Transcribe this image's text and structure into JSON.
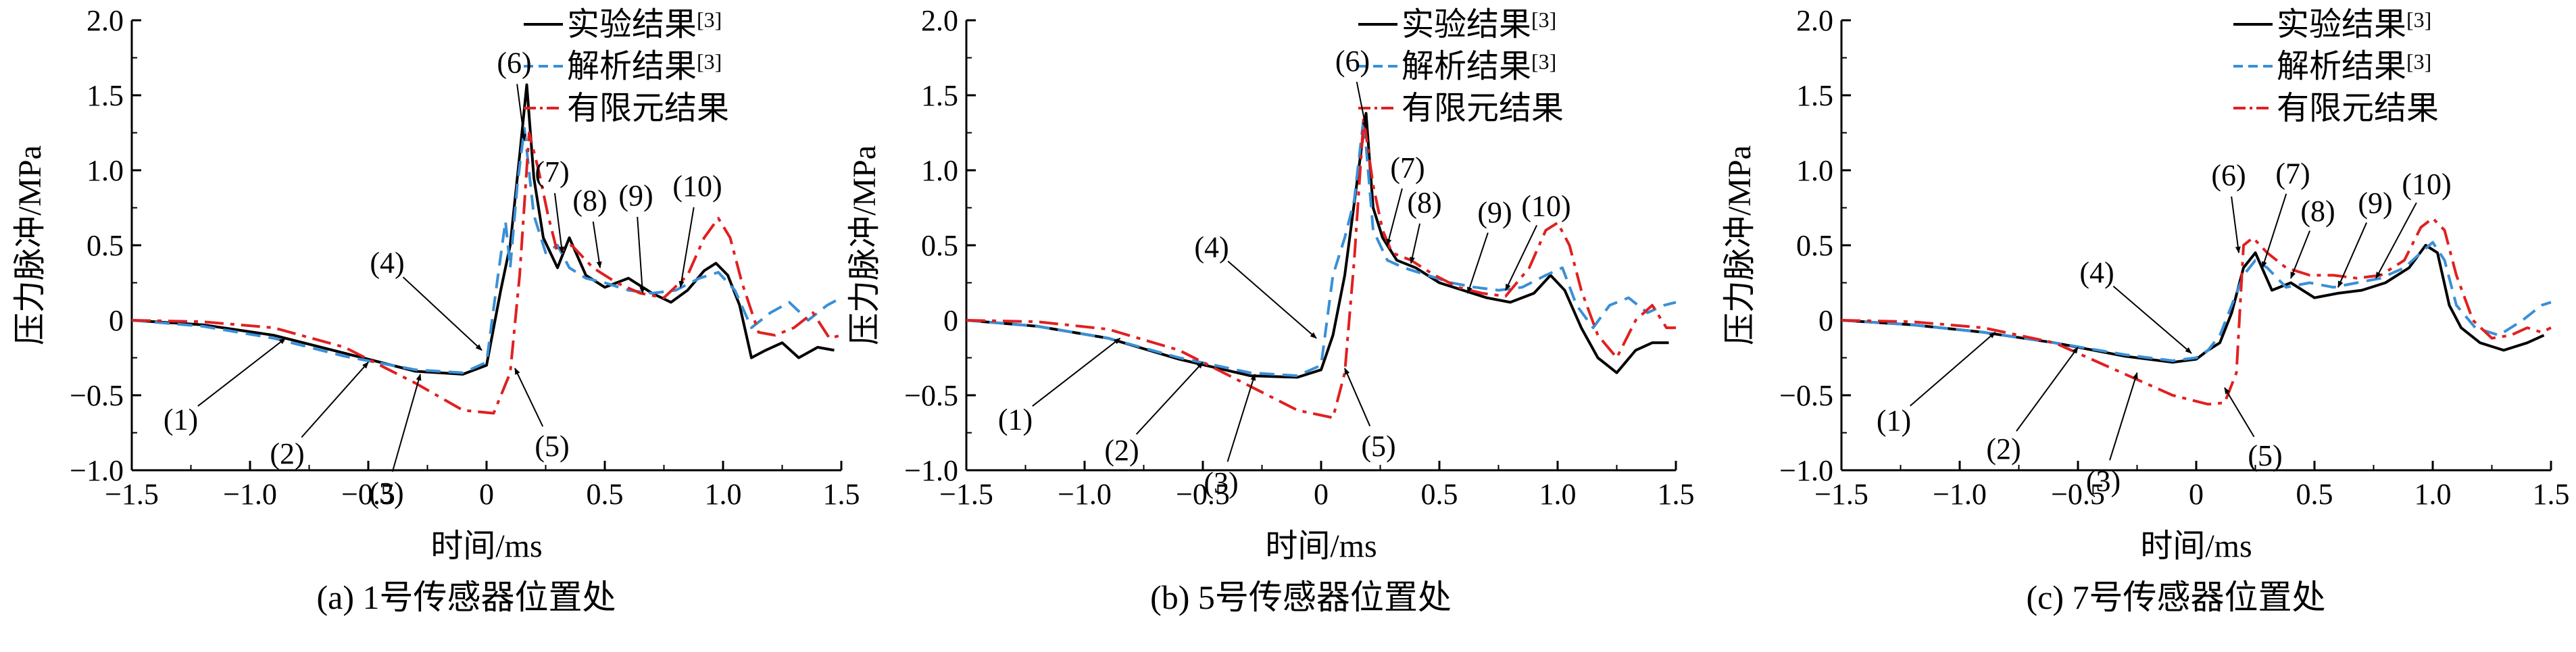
{
  "colors": {
    "experiment": "#000000",
    "analytic": "#3a8fd6",
    "fem": "#e02020"
  },
  "legend": {
    "experiment": "实验结果",
    "experiment_ref": "[3]",
    "analytic": "解析结果",
    "analytic_ref": "[3]",
    "fem": "有限元结果"
  },
  "chart_data": [
    {
      "type": "line",
      "caption": "(a) 1号传感器位置处",
      "xlabel": "时间/ms",
      "ylabel": "压力脉冲/MPa",
      "xlim": [
        -1.5,
        1.5
      ],
      "ylim": [
        -1.0,
        2.0
      ],
      "xticks": [
        "-1.5",
        "-1.0",
        "-0.5",
        "0",
        "0.5",
        "1.0",
        "1.5"
      ],
      "yticks": [
        "-1.0",
        "-0.5",
        "0",
        "0.5",
        "1.0",
        "1.5",
        "2.0"
      ],
      "legend_position": "top-right",
      "series": [
        {
          "name": "实验结果[3]",
          "key": "experiment",
          "x": [
            -1.5,
            -1.2,
            -0.9,
            -0.6,
            -0.3,
            -0.1,
            0.0,
            0.03,
            0.06,
            0.1,
            0.14,
            0.17,
            0.2,
            0.24,
            0.3,
            0.35,
            0.42,
            0.5,
            0.6,
            0.7,
            0.78,
            0.85,
            0.92,
            0.97,
            1.02,
            1.07,
            1.12,
            1.18,
            1.25,
            1.32,
            1.4,
            1.47
          ],
          "y": [
            0.0,
            -0.03,
            -0.1,
            -0.22,
            -0.34,
            -0.36,
            -0.3,
            -0.05,
            0.2,
            0.5,
            1.1,
            1.57,
            0.95,
            0.55,
            0.35,
            0.55,
            0.3,
            0.22,
            0.28,
            0.18,
            0.12,
            0.2,
            0.33,
            0.38,
            0.3,
            0.1,
            -0.25,
            -0.2,
            -0.15,
            -0.25,
            -0.18,
            -0.2
          ]
        },
        {
          "name": "解析结果[3]",
          "key": "analytic",
          "x": [
            -1.5,
            -1.2,
            -0.9,
            -0.6,
            -0.3,
            -0.1,
            0.0,
            0.04,
            0.08,
            0.1,
            0.13,
            0.16,
            0.2,
            0.25,
            0.3,
            0.35,
            0.42,
            0.5,
            0.6,
            0.7,
            0.8,
            0.9,
            0.98,
            1.05,
            1.12,
            1.2,
            1.28,
            1.36,
            1.44,
            1.5
          ],
          "y": [
            0.0,
            -0.04,
            -0.12,
            -0.24,
            -0.33,
            -0.35,
            -0.28,
            0.2,
            0.66,
            0.35,
            0.9,
            1.28,
            0.7,
            0.45,
            0.5,
            0.35,
            0.28,
            0.25,
            0.2,
            0.18,
            0.2,
            0.28,
            0.32,
            0.2,
            -0.05,
            0.05,
            0.12,
            0.0,
            0.1,
            0.15
          ]
        },
        {
          "name": "有限元结果",
          "key": "fem",
          "x": [
            -1.5,
            -1.2,
            -0.9,
            -0.6,
            -0.3,
            -0.1,
            0.03,
            0.1,
            0.14,
            0.18,
            0.22,
            0.26,
            0.3,
            0.36,
            0.45,
            0.55,
            0.65,
            0.75,
            0.85,
            0.92,
            0.98,
            1.03,
            1.08,
            1.15,
            1.22,
            1.3,
            1.38,
            1.45,
            1.5
          ],
          "y": [
            0.0,
            -0.01,
            -0.05,
            -0.18,
            -0.42,
            -0.6,
            -0.62,
            -0.35,
            0.3,
            1.25,
            1.0,
            0.7,
            0.45,
            0.5,
            0.35,
            0.25,
            0.18,
            0.15,
            0.3,
            0.55,
            0.68,
            0.55,
            0.25,
            -0.08,
            -0.1,
            -0.05,
            0.05,
            -0.12,
            -0.1
          ]
        }
      ],
      "annotations": [
        "(1)",
        "(2)",
        "(3)",
        "(4)",
        "(5)",
        "(6)",
        "(7)",
        "(8)",
        "(9)",
        "(10)"
      ]
    },
    {
      "type": "line",
      "caption": "(b) 5号传感器位置处",
      "xlabel": "时间/ms",
      "ylabel": "压力脉冲/MPa",
      "xlim": [
        -1.5,
        1.5
      ],
      "ylim": [
        -1.0,
        2.0
      ],
      "xticks": [
        "-1.5",
        "-1.0",
        "-0.5",
        "0",
        "0.5",
        "1.0",
        "1.5"
      ],
      "yticks": [
        "-1.0",
        "-0.5",
        "0",
        "0.5",
        "1.0",
        "1.5",
        "2.0"
      ],
      "legend_position": "top-right",
      "series": [
        {
          "name": "实验结果[3]",
          "key": "experiment",
          "x": [
            -1.5,
            -1.2,
            -0.9,
            -0.6,
            -0.3,
            -0.1,
            0.0,
            0.05,
            0.1,
            0.15,
            0.19,
            0.22,
            0.26,
            0.32,
            0.4,
            0.5,
            0.6,
            0.7,
            0.8,
            0.9,
            0.97,
            1.03,
            1.1,
            1.17,
            1.25,
            1.33,
            1.4,
            1.47
          ],
          "y": [
            0.0,
            -0.04,
            -0.12,
            -0.26,
            -0.37,
            -0.38,
            -0.33,
            -0.1,
            0.3,
            0.9,
            1.38,
            0.75,
            0.55,
            0.4,
            0.35,
            0.25,
            0.2,
            0.15,
            0.12,
            0.18,
            0.3,
            0.2,
            -0.05,
            -0.25,
            -0.35,
            -0.2,
            -0.15,
            -0.15
          ]
        },
        {
          "name": "解析结果[3]",
          "key": "analytic",
          "x": [
            -1.5,
            -1.2,
            -0.9,
            -0.6,
            -0.3,
            -0.1,
            0.0,
            0.05,
            0.1,
            0.14,
            0.18,
            0.22,
            0.28,
            0.35,
            0.45,
            0.55,
            0.65,
            0.75,
            0.85,
            0.95,
            1.02,
            1.08,
            1.15,
            1.22,
            1.3,
            1.38,
            1.45,
            1.5
          ],
          "y": [
            0.0,
            -0.04,
            -0.12,
            -0.25,
            -0.35,
            -0.37,
            -0.3,
            0.3,
            0.55,
            0.8,
            1.35,
            0.6,
            0.4,
            0.35,
            0.3,
            0.25,
            0.22,
            0.2,
            0.22,
            0.3,
            0.35,
            0.1,
            -0.05,
            0.1,
            0.15,
            0.05,
            0.1,
            0.12
          ]
        },
        {
          "name": "有限元结果",
          "key": "fem",
          "x": [
            -1.5,
            -1.2,
            -0.9,
            -0.6,
            -0.3,
            -0.1,
            0.05,
            0.1,
            0.14,
            0.18,
            0.22,
            0.26,
            0.3,
            0.38,
            0.48,
            0.58,
            0.68,
            0.78,
            0.88,
            0.95,
            1.0,
            1.05,
            1.1,
            1.17,
            1.25,
            1.33,
            1.4,
            1.46,
            1.5
          ],
          "y": [
            0.0,
            -0.01,
            -0.06,
            -0.2,
            -0.44,
            -0.6,
            -0.65,
            -0.35,
            0.4,
            1.35,
            0.9,
            0.6,
            0.45,
            0.4,
            0.3,
            0.22,
            0.18,
            0.16,
            0.35,
            0.6,
            0.65,
            0.5,
            0.2,
            -0.1,
            -0.25,
            0.0,
            0.1,
            -0.05,
            -0.05
          ]
        }
      ],
      "annotations": [
        "(1)",
        "(2)",
        "(3)",
        "(4)",
        "(5)",
        "(6)",
        "(7)",
        "(8)",
        "(9)",
        "(10)"
      ]
    },
    {
      "type": "line",
      "caption": "(c) 7号传感器位置处",
      "xlabel": "时间/ms",
      "ylabel": "压力脉冲/MPa",
      "xlim": [
        -1.5,
        1.5
      ],
      "ylim": [
        -1.0,
        2.0
      ],
      "xticks": [
        "-1.5",
        "-1.0",
        "-0.5",
        "0",
        "0.5",
        "1.0",
        "1.5"
      ],
      "yticks": [
        "-1.0",
        "-0.5",
        "0",
        "0.5",
        "1.0",
        "1.5",
        "2.0"
      ],
      "legend_position": "top-right",
      "series": [
        {
          "name": "实验结果[3]",
          "key": "experiment",
          "x": [
            -1.5,
            -1.2,
            -0.9,
            -0.6,
            -0.3,
            -0.1,
            0.0,
            0.05,
            0.1,
            0.15,
            0.2,
            0.25,
            0.32,
            0.4,
            0.5,
            0.6,
            0.7,
            0.8,
            0.9,
            0.97,
            1.02,
            1.07,
            1.12,
            1.2,
            1.3,
            1.4,
            1.47
          ],
          "y": [
            0.0,
            -0.03,
            -0.08,
            -0.15,
            -0.24,
            -0.28,
            -0.26,
            -0.2,
            -0.15,
            0.05,
            0.35,
            0.45,
            0.2,
            0.25,
            0.15,
            0.18,
            0.2,
            0.25,
            0.35,
            0.5,
            0.45,
            0.1,
            -0.05,
            -0.15,
            -0.2,
            -0.15,
            -0.1
          ]
        },
        {
          "name": "解析结果[3]",
          "key": "analytic",
          "x": [
            -1.5,
            -1.2,
            -0.9,
            -0.6,
            -0.3,
            -0.1,
            0.0,
            0.05,
            0.1,
            0.15,
            0.2,
            0.25,
            0.3,
            0.38,
            0.48,
            0.58,
            0.68,
            0.78,
            0.88,
            0.95,
            1.0,
            1.05,
            1.1,
            1.18,
            1.28,
            1.38,
            1.46,
            1.5
          ],
          "y": [
            0.0,
            -0.03,
            -0.08,
            -0.15,
            -0.23,
            -0.27,
            -0.25,
            -0.2,
            -0.1,
            0.1,
            0.3,
            0.4,
            0.35,
            0.22,
            0.25,
            0.22,
            0.25,
            0.28,
            0.35,
            0.45,
            0.52,
            0.4,
            0.1,
            -0.05,
            -0.1,
            0.0,
            0.1,
            0.12
          ]
        },
        {
          "name": "有限元结果",
          "key": "fem",
          "x": [
            -1.5,
            -1.2,
            -0.9,
            -0.6,
            -0.3,
            -0.1,
            0.05,
            0.12,
            0.17,
            0.2,
            0.24,
            0.3,
            0.38,
            0.48,
            0.58,
            0.68,
            0.78,
            0.88,
            0.95,
            1.0,
            1.05,
            1.1,
            1.17,
            1.25,
            1.33,
            1.4,
            1.46,
            1.5
          ],
          "y": [
            0.0,
            -0.01,
            -0.05,
            -0.15,
            -0.36,
            -0.5,
            -0.56,
            -0.55,
            -0.35,
            0.5,
            0.55,
            0.45,
            0.35,
            0.3,
            0.3,
            0.28,
            0.3,
            0.4,
            0.62,
            0.68,
            0.6,
            0.3,
            0.0,
            -0.12,
            -0.1,
            -0.05,
            -0.08,
            -0.05
          ]
        }
      ],
      "annotations": [
        "(1)",
        "(2)",
        "(3)",
        "(4)",
        "(5)",
        "(6)",
        "(7)",
        "(8)",
        "(9)",
        "(10)"
      ]
    }
  ]
}
